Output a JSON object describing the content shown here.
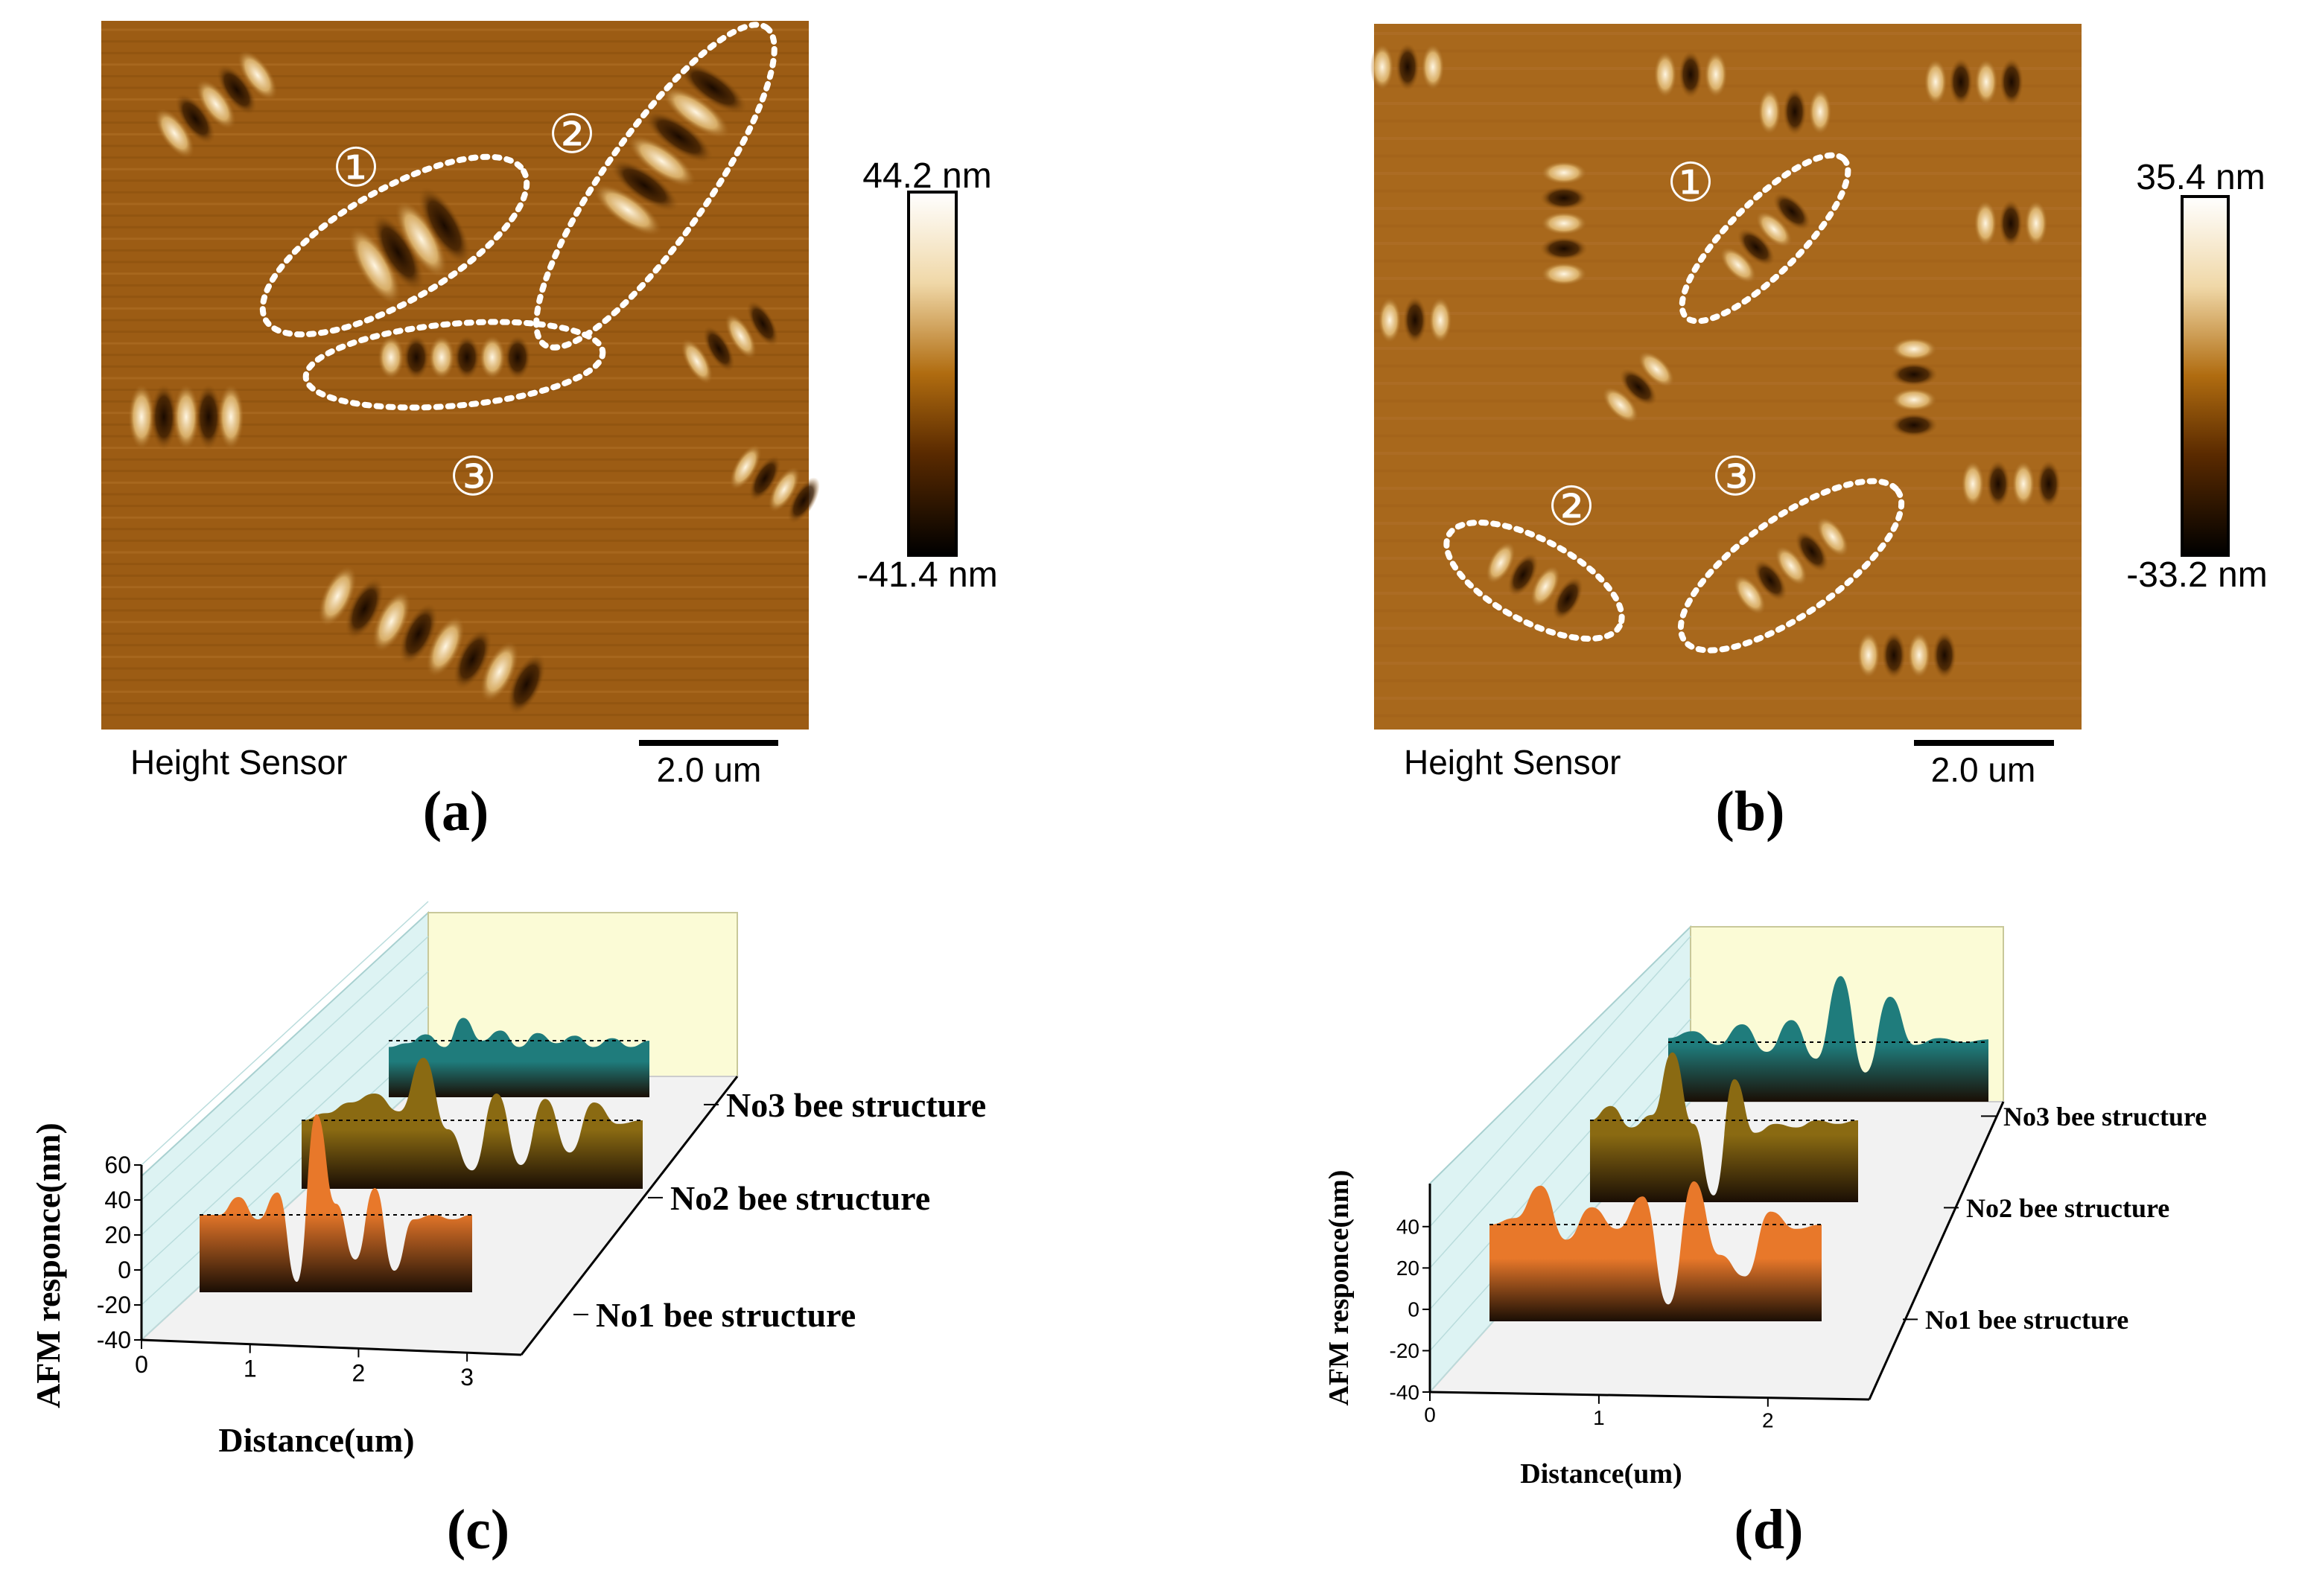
{
  "panels": {
    "a": {
      "label": "(a)",
      "caption": "Height Sensor",
      "scalebar": "2.0 um",
      "colorbar": {
        "max": "44.2 nm",
        "min": "-41.4 nm"
      },
      "markers": [
        "①",
        "②",
        "③"
      ]
    },
    "b": {
      "label": "(b)",
      "caption": "Height Sensor",
      "scalebar": "2.0 um",
      "colorbar": {
        "max": "35.4 nm",
        "min": "-33.2 nm"
      },
      "markers": [
        "①",
        "②",
        "③"
      ]
    },
    "c": {
      "label": "(c)"
    },
    "d": {
      "label": "(d)"
    }
  },
  "colors": {
    "afm_dark": "#3a1c00",
    "afm_mid": "#9a5a10",
    "afm_light": "#f4e6c8",
    "no1_fill": "#e8782a",
    "no2_fill": "#8a6a12",
    "no3_fill": "#1f7c7c",
    "back_wall": "#fbfbd6",
    "side_wall": "#d9f2f2"
  },
  "chart_data": [
    {
      "panel": "c",
      "type": "area",
      "xlabel": "Distance(um)",
      "ylabel": "AFM responce(nm)",
      "xticks": [
        "0",
        "1",
        "2",
        "3"
      ],
      "yticks": [
        "60",
        "40",
        "20",
        "0",
        "-20",
        "-40"
      ],
      "xlim": [
        0,
        3.5
      ],
      "ylim": [
        -40,
        60
      ],
      "series": [
        {
          "name": "No1 bee structure",
          "x": [
            0,
            0.25,
            0.5,
            0.75,
            1.0,
            1.25,
            1.5,
            1.75,
            2.0,
            2.25,
            2.5,
            2.75,
            3.0,
            3.25,
            3.5
          ],
          "values": [
            10,
            10,
            18,
            8,
            20,
            -20,
            55,
            15,
            -10,
            22,
            -15,
            8,
            10,
            8,
            10
          ]
        },
        {
          "name": "No2 bee structure",
          "x": [
            0,
            0.25,
            0.5,
            0.75,
            1.0,
            1.25,
            1.5,
            1.75,
            2.0,
            2.25,
            2.5,
            2.75,
            3.0,
            3.25,
            3.5
          ],
          "values": [
            10,
            14,
            20,
            25,
            15,
            45,
            5,
            -18,
            25,
            -15,
            22,
            -8,
            20,
            8,
            10
          ]
        },
        {
          "name": "No3 bee structure",
          "x": [
            0,
            0.25,
            0.5,
            0.75,
            1.0,
            1.25,
            1.5,
            1.75,
            2.0,
            2.25,
            2.5,
            2.75,
            3.0,
            3.25,
            3.5
          ],
          "values": [
            5,
            8,
            15,
            5,
            28,
            10,
            18,
            5,
            16,
            8,
            14,
            5,
            12,
            5,
            10
          ]
        }
      ]
    },
    {
      "panel": "d",
      "type": "area",
      "xlabel": "Distance(um)",
      "ylabel": "AFM responce(nm)",
      "xticks": [
        "0",
        "1",
        "2"
      ],
      "yticks": [
        "40",
        "20",
        "0",
        "-20",
        "-40"
      ],
      "xlim": [
        0,
        2.6
      ],
      "ylim": [
        -40,
        50
      ],
      "series": [
        {
          "name": "No1 bee structure",
          "x": [
            0,
            0.2,
            0.4,
            0.6,
            0.8,
            1.0,
            1.2,
            1.4,
            1.6,
            1.8,
            2.0,
            2.2,
            2.4,
            2.6
          ],
          "values": [
            22,
            25,
            40,
            15,
            30,
            20,
            35,
            -15,
            42,
            8,
            -2,
            28,
            20,
            22
          ]
        },
        {
          "name": "No2 bee structure",
          "x": [
            0,
            0.2,
            0.4,
            0.6,
            0.8,
            1.0,
            1.2,
            1.4,
            1.6,
            1.8,
            2.0,
            2.2,
            2.4,
            2.6
          ],
          "values": [
            22,
            30,
            18,
            25,
            60,
            20,
            -20,
            45,
            15,
            20,
            18,
            22,
            20,
            22
          ]
        },
        {
          "name": "No3 bee structure",
          "x": [
            0,
            0.2,
            0.4,
            0.6,
            0.8,
            1.0,
            1.2,
            1.4,
            1.6,
            1.8,
            2.0,
            2.2,
            2.4,
            2.6
          ],
          "values": [
            25,
            30,
            20,
            35,
            15,
            38,
            10,
            70,
            0,
            55,
            20,
            25,
            22,
            24
          ]
        }
      ]
    }
  ]
}
